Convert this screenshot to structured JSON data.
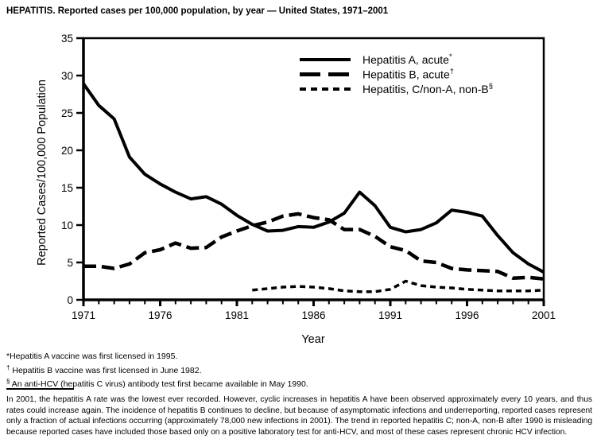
{
  "figure_title": "HEPATITIS. Reported cases per 100,000 population, by year — United States, 1971–2001",
  "chart_data": {
    "type": "line",
    "title": "HEPATITIS. Reported cases per 100,000 population, by year — United States, 1971–2001",
    "xlabel": "Year",
    "ylabel": "Reported Cases/100,000 Population",
    "xlim": [
      1971,
      2001
    ],
    "ylim": [
      0,
      35
    ],
    "grid": false,
    "legend_position": "top-right-inside",
    "x_major_ticks": [
      1971,
      1976,
      1981,
      1986,
      1991,
      1996,
      2001
    ],
    "y_ticks": [
      0,
      5,
      10,
      15,
      20,
      25,
      30,
      35
    ],
    "years": [
      1971,
      1972,
      1973,
      1974,
      1975,
      1976,
      1977,
      1978,
      1979,
      1980,
      1981,
      1982,
      1983,
      1984,
      1985,
      1986,
      1987,
      1988,
      1989,
      1990,
      1991,
      1992,
      1993,
      1994,
      1995,
      1996,
      1997,
      1998,
      1999,
      2000,
      2001
    ],
    "series": [
      {
        "name": "Hepatitis A, acute",
        "sup": "*",
        "style": "solid",
        "values": [
          28.9,
          26.0,
          24.2,
          19.1,
          16.8,
          15.5,
          14.4,
          13.5,
          13.8,
          12.8,
          11.3,
          10.1,
          9.2,
          9.3,
          9.8,
          9.7,
          10.4,
          11.6,
          14.4,
          12.6,
          9.7,
          9.1,
          9.4,
          10.3,
          12.0,
          11.7,
          11.2,
          8.6,
          6.3,
          4.8,
          3.7
        ]
      },
      {
        "name": "Hepatitis B, acute",
        "sup": "†",
        "style": "long-dash",
        "values": [
          4.5,
          4.5,
          4.2,
          4.8,
          6.3,
          6.7,
          7.6,
          6.9,
          7.0,
          8.4,
          9.2,
          9.9,
          10.4,
          11.2,
          11.5,
          11.0,
          10.7,
          9.4,
          9.4,
          8.5,
          7.1,
          6.6,
          5.2,
          5.0,
          4.2,
          4.0,
          3.9,
          3.8,
          2.9,
          3.0,
          2.8
        ]
      },
      {
        "name": "Hepatitis, C/non-A, non-B",
        "sup": "§",
        "style": "short-dash",
        "values": [
          null,
          null,
          null,
          null,
          null,
          null,
          null,
          null,
          null,
          null,
          null,
          1.3,
          1.5,
          1.7,
          1.8,
          1.7,
          1.5,
          1.2,
          1.1,
          1.1,
          1.4,
          2.5,
          1.9,
          1.7,
          1.6,
          1.4,
          1.3,
          1.2,
          1.2,
          1.2,
          1.3
        ]
      }
    ]
  },
  "footnotes": [
    {
      "sup": "*",
      "text": "Hepatitis A vaccine was first licensed in 1995."
    },
    {
      "sup": "†",
      "text": "Hepatitis B vaccine was first licensed in June 1982."
    },
    {
      "sup": "§",
      "text": "An anti-HCV (hepatitis C virus) antibody test first became available in May 1990."
    }
  ],
  "note": "In 2001, the hepatitis A rate was the lowest ever recorded. However, cyclic increases in hepatitis A have been observed approximately every 10 years, and thus rates could increase again. The incidence of hepatitis B continues to decline, but because of asymptomatic infections and underreporting, reported cases represent only a fraction of actual infections occurring (approximately 78,000 new infections in 2001). The trend in reported hepatitis C; non-A, non-B after 1990 is misleading because reported cases have included those based only on a positive laboratory test for anti-HCV, and most of these cases represent chronic HCV infection.",
  "colors": {
    "line": "#000000",
    "background": "#ffffff"
  }
}
